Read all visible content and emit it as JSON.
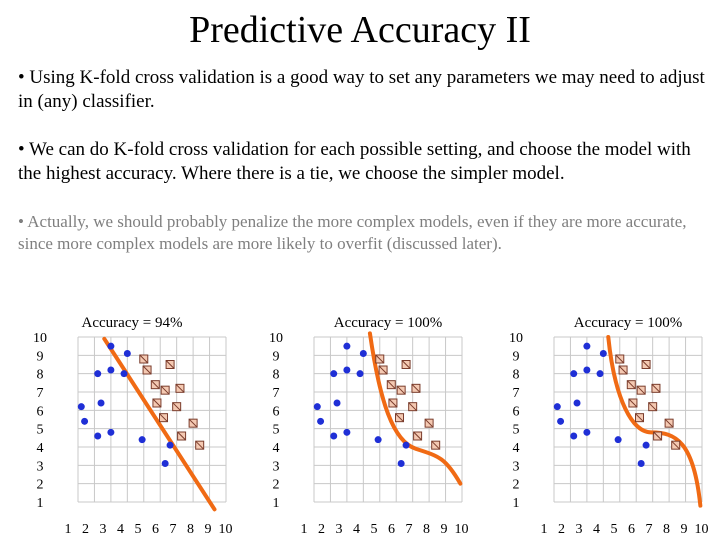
{
  "slide": {
    "title": "Predictive Accuracy II",
    "bullets": [
      "• Using K-fold cross validation is a good way to set any parameters we may need to adjust in (any) classifier.",
      "• We can do K-fold cross validation for each possible setting, and choose the model with the highest accuracy. Where there is a tie, we choose the simpler model.",
      "• Actually, we should probably penalize the more complex models, even if they are more accurate, since more complex models are more likely to overfit (discussed later)."
    ]
  },
  "colors": {
    "dot": "#1f2fd6",
    "square_fill": "#f4c9b2",
    "square_border": "#7a3c2c",
    "boundary": "#f06a14",
    "grid": "#c8c8c8",
    "faded_text": "#7f7f7f"
  },
  "chart_data": [
    {
      "type": "scatter",
      "title": "Accuracy = 94%",
      "x_ticks": [
        "1",
        "2",
        "3",
        "4",
        "5",
        "6",
        "7",
        "8",
        "9",
        "10"
      ],
      "y_ticks": [
        "10",
        "9",
        "8",
        "7",
        "6",
        "5",
        "4",
        "3",
        "2",
        "1"
      ],
      "xlim": [
        1,
        10
      ],
      "ylim": [
        1,
        10
      ],
      "series": [
        {
          "name": "circles",
          "points": [
            [
              3.0,
              9.5
            ],
            [
              4.0,
              9.1
            ],
            [
              3.0,
              8.2
            ],
            [
              2.2,
              8.0
            ],
            [
              3.8,
              8.0
            ],
            [
              1.2,
              6.2
            ],
            [
              2.4,
              6.4
            ],
            [
              1.4,
              5.4
            ],
            [
              3.0,
              4.8
            ],
            [
              4.9,
              4.4
            ],
            [
              6.6,
              4.1
            ],
            [
              6.3,
              3.1
            ],
            [
              2.2,
              4.6
            ]
          ]
        },
        {
          "name": "squares",
          "points": [
            [
              5.0,
              8.8
            ],
            [
              5.2,
              8.2
            ],
            [
              6.6,
              8.5
            ],
            [
              5.7,
              7.4
            ],
            [
              6.3,
              7.1
            ],
            [
              7.2,
              7.2
            ],
            [
              5.8,
              6.4
            ],
            [
              7.0,
              6.2
            ],
            [
              6.2,
              5.6
            ],
            [
              8.0,
              5.3
            ],
            [
              8.4,
              4.1
            ],
            [
              7.3,
              4.6
            ]
          ]
        }
      ],
      "boundary": "straight diagonal line"
    },
    {
      "type": "scatter",
      "title": "Accuracy = 100%",
      "x_ticks": [
        "1",
        "2",
        "3",
        "4",
        "5",
        "6",
        "7",
        "8",
        "9",
        "10"
      ],
      "y_ticks": [
        "10",
        "9",
        "8",
        "7",
        "6",
        "5",
        "4",
        "3",
        "2",
        "1"
      ],
      "xlim": [
        1,
        10
      ],
      "ylim": [
        1,
        10
      ],
      "series": [
        {
          "name": "circles",
          "points": [
            [
              3.0,
              9.5
            ],
            [
              4.0,
              9.1
            ],
            [
              3.0,
              8.2
            ],
            [
              2.2,
              8.0
            ],
            [
              3.8,
              8.0
            ],
            [
              1.2,
              6.2
            ],
            [
              2.4,
              6.4
            ],
            [
              1.4,
              5.4
            ],
            [
              3.0,
              4.8
            ],
            [
              4.9,
              4.4
            ],
            [
              6.6,
              4.1
            ],
            [
              6.3,
              3.1
            ],
            [
              2.2,
              4.6
            ]
          ]
        },
        {
          "name": "squares",
          "points": [
            [
              5.0,
              8.8
            ],
            [
              5.2,
              8.2
            ],
            [
              6.6,
              8.5
            ],
            [
              5.7,
              7.4
            ],
            [
              6.3,
              7.1
            ],
            [
              7.2,
              7.2
            ],
            [
              5.8,
              6.4
            ],
            [
              7.0,
              6.2
            ],
            [
              6.2,
              5.6
            ],
            [
              8.0,
              5.3
            ],
            [
              8.4,
              4.1
            ],
            [
              7.3,
              4.6
            ]
          ]
        }
      ],
      "boundary": "smooth curve"
    },
    {
      "type": "scatter",
      "title": "Accuracy = 100%",
      "x_ticks": [
        "1",
        "2",
        "3",
        "4",
        "5",
        "6",
        "7",
        "8",
        "9",
        "10"
      ],
      "y_ticks": [
        "10",
        "9",
        "8",
        "7",
        "6",
        "5",
        "4",
        "3",
        "2",
        "1"
      ],
      "xlim": [
        1,
        10
      ],
      "ylim": [
        1,
        10
      ],
      "series": [
        {
          "name": "circles",
          "points": [
            [
              3.0,
              9.5
            ],
            [
              4.0,
              9.1
            ],
            [
              3.0,
              8.2
            ],
            [
              2.2,
              8.0
            ],
            [
              3.8,
              8.0
            ],
            [
              1.2,
              6.2
            ],
            [
              2.4,
              6.4
            ],
            [
              1.4,
              5.4
            ],
            [
              3.0,
              4.8
            ],
            [
              4.9,
              4.4
            ],
            [
              6.6,
              4.1
            ],
            [
              6.3,
              3.1
            ],
            [
              2.2,
              4.6
            ]
          ]
        },
        {
          "name": "squares",
          "points": [
            [
              5.0,
              8.8
            ],
            [
              5.2,
              8.2
            ],
            [
              6.6,
              8.5
            ],
            [
              5.7,
              7.4
            ],
            [
              6.3,
              7.1
            ],
            [
              7.2,
              7.2
            ],
            [
              5.8,
              6.4
            ],
            [
              7.0,
              6.2
            ],
            [
              6.2,
              5.6
            ],
            [
              8.0,
              5.3
            ],
            [
              8.4,
              4.1
            ],
            [
              7.3,
              4.6
            ]
          ]
        }
      ],
      "boundary": "wiggly curve"
    }
  ]
}
